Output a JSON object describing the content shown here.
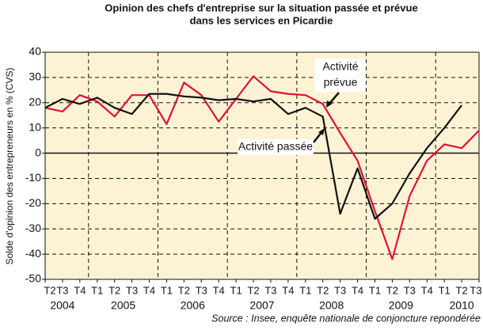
{
  "chart_data": {
    "type": "line",
    "title": [
      "Opinion des chefs d'entreprise sur la situation passée et prévue",
      "dans les services en Picardie"
    ],
    "ylabel": "Solde d'opinion des entrepreneurs en % (CVS)",
    "source": "Source : Insee, enquête nationale de conjoncture repondérée",
    "categories": [
      "T2",
      "T3",
      "T4",
      "T1",
      "T2",
      "T3",
      "T4",
      "T1",
      "T2",
      "T3",
      "T4",
      "T1",
      "T2",
      "T3",
      "T4",
      "T1",
      "T2",
      "T3",
      "T4",
      "T1",
      "T2",
      "T3",
      "T4",
      "T1",
      "T2",
      "T3"
    ],
    "years": [
      "2004",
      "2005",
      "2006",
      "2007",
      "2008",
      "2009",
      "2010"
    ],
    "series": [
      {
        "name": [
          "Activité",
          "prévue"
        ],
        "color": "#e0103a",
        "values": [
          18,
          16.5,
          23,
          20.5,
          14.5,
          23,
          23,
          11.5,
          28,
          23,
          12.5,
          21.5,
          30.5,
          24.5,
          23.5,
          23,
          19.5,
          8,
          -3,
          -23,
          -42,
          -17,
          -3,
          3.5,
          2,
          9
        ]
      },
      {
        "name": [
          "Activité passée"
        ],
        "color": "#111111",
        "values": [
          18,
          21.5,
          19.5,
          22,
          18,
          15.5,
          23.5,
          23.5,
          22.5,
          22,
          21,
          21.5,
          20.5,
          21.5,
          15.5,
          18,
          14.5,
          -24,
          -6,
          -26,
          -20,
          -8,
          2,
          10,
          19,
          null
        ]
      }
    ],
    "ylim": [
      -50,
      40
    ],
    "yticks": [
      -50,
      -40,
      -30,
      -20,
      -10,
      0,
      10,
      20,
      30,
      40
    ],
    "grid": true,
    "background": "#fdf3d4"
  }
}
